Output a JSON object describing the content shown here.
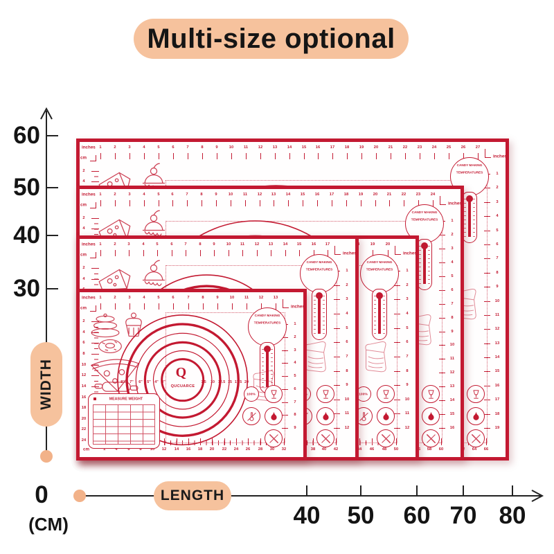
{
  "title": "Multi-size optional",
  "colors": {
    "red": "#c31931",
    "peach": "#f6c29d",
    "peach_underline": "#f8cfae",
    "ink": "#1b1b1b",
    "mat_bg": "#fffefe"
  },
  "width_axis": {
    "label": "WIDTH",
    "ticks": [
      "60",
      "50",
      "40",
      "30"
    ],
    "origin_label": "0",
    "unit_label": "(CM)"
  },
  "length_axis": {
    "label": "LENGTH",
    "ticks": [
      "40",
      "50",
      "60",
      "70",
      "80"
    ]
  },
  "mat_common": {
    "inches_label": "inches",
    "cm_label": "cm",
    "thermometer_line1": "CANDY MAKING",
    "thermometer_line2": "TEMPERATURES",
    "logo_letter": "Q",
    "logo_text": "QUCUARCE",
    "table_title": "MEASURE WEIGHT",
    "badge_label": "100%",
    "dial_labels_left": [
      "8\"",
      "7\"",
      "6\"",
      "5\"",
      "4\"",
      "3\""
    ],
    "dial_labels_right": [
      "7.5",
      "10",
      "12.5",
      "15",
      "17.5",
      "20"
    ]
  },
  "icon_names": [
    "badge-100-icon",
    "no-wine-glass-icon",
    "no-thermometer-icon",
    "flame-icon",
    "no-knife-icon",
    "cheese-doodle-icon",
    "cherry-cake-doodle-icon",
    "layer-cake-doodle-icon",
    "cupcake-doodle-icon",
    "donut-doodle-icon",
    "pizza-doodle-icon",
    "rolling-pin-doodle-icon",
    "bread-bag-doodle-icon"
  ],
  "mats": [
    {
      "id": "mat-80x60",
      "length_cm": 80,
      "width_cm": 60,
      "top_ruler_max_inch": 27,
      "bottom_ruler_max_cm": 66,
      "right_ruler_max_inch": 19,
      "left_ruler_max_cm": 54,
      "doodles": "cheese-cherry"
    },
    {
      "id": "mat-70x50",
      "length_cm": 70,
      "width_cm": 50,
      "top_ruler_max_inch": 24,
      "bottom_ruler_max_cm": 60,
      "right_ruler_max_inch": 16,
      "left_ruler_max_cm": 44,
      "doodles": "cheese-cherry"
    },
    {
      "id": "mat-60x40",
      "length_cm": 60,
      "width_cm": 40,
      "top_ruler_max_inch": 20,
      "bottom_ruler_max_cm": 50,
      "right_ruler_max_inch": 12,
      "left_ruler_max_cm": 34,
      "doodles": "cake-cupcake"
    },
    {
      "id": "mat-50x40",
      "length_cm": 50,
      "width_cm": 40,
      "top_ruler_max_inch": 17,
      "bottom_ruler_max_cm": 42,
      "right_ruler_max_inch": 12,
      "left_ruler_max_cm": 34,
      "doodles": "cheese-cherry"
    },
    {
      "id": "mat-40x30",
      "length_cm": 40,
      "width_cm": 30,
      "top_ruler_max_inch": 13,
      "bottom_ruler_max_cm": 32,
      "right_ruler_max_inch": 9,
      "left_ruler_max_cm": 24,
      "doodles": "pastry-set"
    }
  ]
}
